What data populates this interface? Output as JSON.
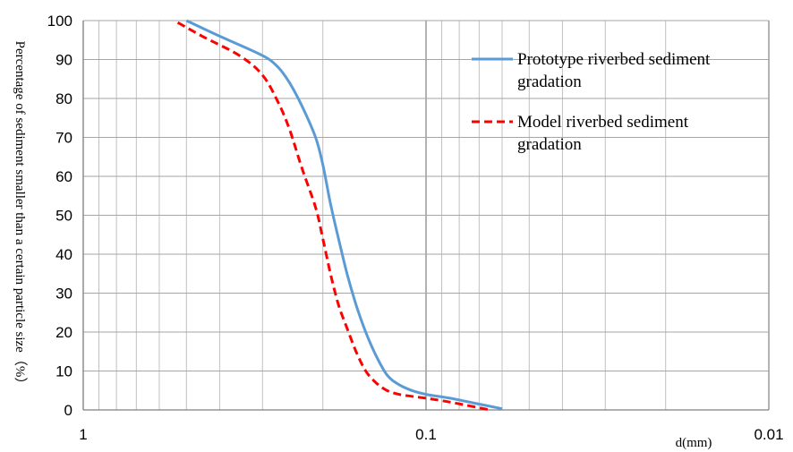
{
  "chart_data": {
    "type": "line",
    "title": "",
    "xlabel": "d(mm)",
    "ylabel": "Percentage of sediment smaller than a certain particle size（%）",
    "x_scale": "log",
    "x_reversed": true,
    "xlim": [
      1,
      0.01
    ],
    "ylim": [
      0,
      100
    ],
    "x_ticks": [
      1,
      0.1,
      0.01
    ],
    "x_tick_labels": [
      "1",
      "0.1",
      "0.01"
    ],
    "y_ticks": [
      0,
      10,
      20,
      30,
      40,
      50,
      60,
      70,
      80,
      90,
      100
    ],
    "y_tick_labels": [
      "0",
      "10",
      "20",
      "30",
      "40",
      "50",
      "60",
      "70",
      "80",
      "90",
      "100"
    ],
    "grid": true,
    "legend_position": "top-right",
    "series": [
      {
        "name": "Prototype riverbed sediment gradation",
        "color": "#5b9bd5",
        "style": "solid",
        "x": [
          0.5,
          0.4,
          0.3,
          0.27,
          0.25,
          0.23,
          0.21,
          0.2,
          0.19,
          0.18,
          0.17,
          0.16,
          0.15,
          0.14,
          0.13,
          0.12,
          0.11,
          0.1,
          0.085,
          0.07,
          0.06
        ],
        "y": [
          100,
          96,
          91,
          88,
          84,
          78,
          70,
          63,
          53,
          44,
          35,
          27,
          20,
          14,
          9,
          6.5,
          5,
          4,
          3,
          1.5,
          0.3
        ]
      },
      {
        "name": "Model riverbed sediment gradation",
        "color": "#ff0000",
        "style": "dashed",
        "x": [
          0.53,
          0.45,
          0.35,
          0.3,
          0.27,
          0.25,
          0.23,
          0.21,
          0.2,
          0.19,
          0.18,
          0.17,
          0.16,
          0.15,
          0.14,
          0.13,
          0.12,
          0.11,
          0.1,
          0.085,
          0.065
        ],
        "y": [
          99.5,
          96,
          91,
          86,
          79,
          72,
          62,
          52,
          44,
          35,
          27,
          21,
          15,
          10,
          7,
          5,
          4,
          3.5,
          3,
          2,
          0
        ]
      }
    ]
  }
}
